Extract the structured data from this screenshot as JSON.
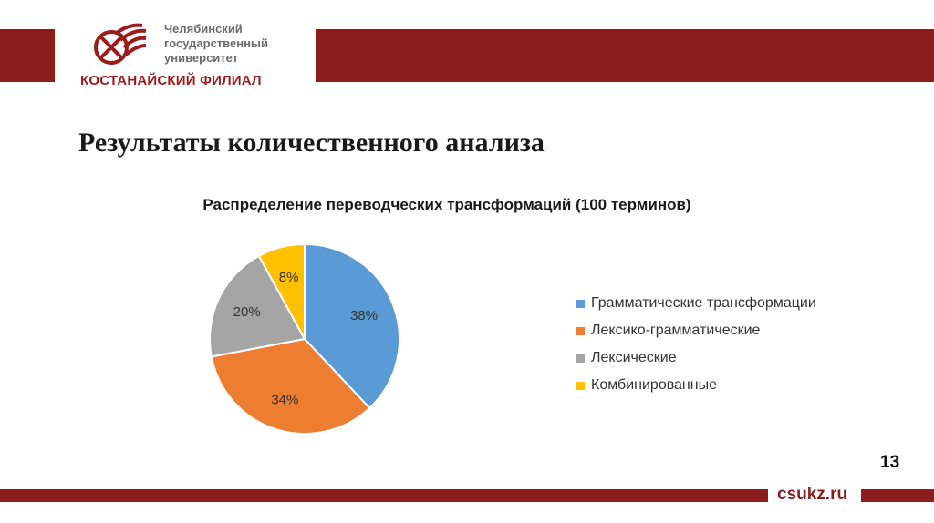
{
  "header": {
    "university_lines": [
      "Челябинский",
      "государственный",
      "университет"
    ],
    "branch": "КОСТАНАЙСКИЙ ФИЛИАЛ",
    "colors": {
      "brand": "#8c1d1d"
    }
  },
  "page_title": "Результаты количественного анализа",
  "footer": {
    "page_number": "13",
    "site": "csukz.ru"
  },
  "chart_data": {
    "type": "pie",
    "title": "Распределение переводческих трансформаций (100 терминов)",
    "categories": [
      "Грамматические трансформации",
      "Лексико-грамматические",
      "Лексические",
      "Комбинированные"
    ],
    "values": [
      38,
      34,
      20,
      8
    ],
    "labels": [
      "38%",
      "34%",
      "20%",
      "8%"
    ],
    "colors": [
      "#5b9bd5",
      "#ed7d31",
      "#a5a5a5",
      "#ffc000"
    ],
    "legend_position": "right",
    "start": "top",
    "direction": "clockwise"
  }
}
